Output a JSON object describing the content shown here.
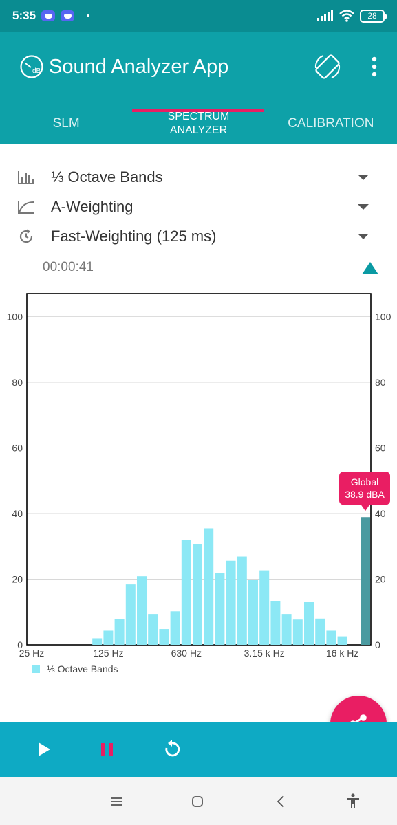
{
  "status_bar": {
    "time": "5:35",
    "battery": "28"
  },
  "app_bar": {
    "title": "Sound Analyzer App",
    "logo_text": "dB"
  },
  "tabs": [
    {
      "label": "SLM",
      "active": false
    },
    {
      "label": "SPECTRUM\nANALYZER",
      "active": true
    },
    {
      "label": "CALIBRATION",
      "active": false
    }
  ],
  "selectors": {
    "bands": {
      "label": "⅓ Octave Bands",
      "icon": "bar-chart-icon"
    },
    "weighting": {
      "label": "A-Weighting",
      "icon": "curve-icon"
    },
    "time_weighting": {
      "label": "Fast-Weighting (125 ms)",
      "icon": "refresh-clock-icon"
    }
  },
  "timer": "00:00:41",
  "colors": {
    "primary": "#0ea1a8",
    "primary_dark": "#0a8c91",
    "accent": "#e91e63",
    "bar": "#8ce8f5",
    "global_bar": "#4a9aa0",
    "bottom_bar": "#0eaac4"
  },
  "chart_data": {
    "type": "bar",
    "ylim": [
      0,
      107
    ],
    "yticks": [
      "0",
      "20",
      "40",
      "60",
      "80",
      "100"
    ],
    "xtick_labels": [
      "25 Hz",
      "125 Hz",
      "630 Hz",
      "3.15 k Hz",
      "16 k Hz"
    ],
    "xtick_band_index": [
      0,
      7,
      14,
      21,
      28
    ],
    "series": [
      {
        "name": "⅓ Octave Bands",
        "values": [
          0,
          0,
          0,
          0,
          0,
          0,
          2,
          4.3,
          7.8,
          18.4,
          20.9,
          9.4,
          4.8,
          10.2,
          32,
          30.6,
          35.5,
          21.8,
          25.6,
          26.9,
          19.7,
          22.7,
          13.4,
          9.4,
          7.7,
          13.1,
          8,
          4.3,
          2.6
        ]
      }
    ],
    "global": {
      "label": "Global",
      "value_text": "38.9 dBA",
      "value": 38.9
    },
    "grid": true,
    "legend": "bottom-left"
  }
}
